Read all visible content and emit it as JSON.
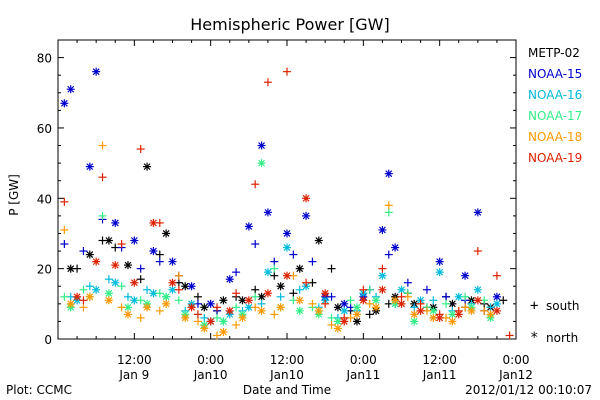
{
  "chart_data": {
    "type": "scatter",
    "title": "Hemispheric Power [GW]",
    "ylabel": "P [GW]",
    "xlabel": "Date and Time",
    "ylim": [
      0,
      85
    ],
    "xlim_hours": [
      0,
      72
    ],
    "yticks": [
      "0",
      "20",
      "40",
      "60",
      "80"
    ],
    "xticks": [
      {
        "hour": 12,
        "time": "12:00",
        "date": "Jan 9"
      },
      {
        "hour": 24,
        "time": "0:00",
        "date": "Jan10"
      },
      {
        "hour": 36,
        "time": "12:00",
        "date": "Jan10"
      },
      {
        "hour": 48,
        "time": "0:00",
        "date": "Jan11"
      },
      {
        "hour": 60,
        "time": "12:00",
        "date": "Jan11"
      },
      {
        "hour": 72,
        "time": "0:00",
        "date": "Jan12"
      }
    ],
    "footer_left": "Plot: CCMC",
    "footer_right": "2012/01/12 00:10:07",
    "marker_legend": {
      "south": "south",
      "north": "north",
      "south_symbol": "+",
      "north_symbol": "*"
    },
    "series": [
      {
        "name": "METP-02",
        "color": "#000000",
        "south": [
          [
            3,
            20
          ],
          [
            7,
            28
          ],
          [
            9,
            26
          ],
          [
            13,
            17
          ],
          [
            16,
            24
          ],
          [
            19,
            16
          ],
          [
            22,
            12
          ],
          [
            25,
            8
          ],
          [
            28,
            12
          ],
          [
            31,
            14
          ],
          [
            34,
            18
          ],
          [
            37,
            13
          ],
          [
            40,
            16
          ],
          [
            43,
            20
          ],
          [
            46,
            8
          ],
          [
            49,
            7
          ],
          [
            52,
            10
          ],
          [
            55,
            13
          ],
          [
            58,
            9
          ],
          [
            61,
            12
          ],
          [
            64,
            9
          ],
          [
            67,
            10
          ],
          [
            70,
            11
          ]
        ],
        "north": [
          [
            2,
            20
          ],
          [
            5,
            24
          ],
          [
            8,
            28
          ],
          [
            11,
            21
          ],
          [
            14,
            49
          ],
          [
            17,
            30
          ],
          [
            20,
            15
          ],
          [
            23,
            9
          ],
          [
            26,
            11
          ],
          [
            29,
            11
          ],
          [
            32,
            12
          ],
          [
            35,
            15
          ],
          [
            38,
            20
          ],
          [
            41,
            28
          ],
          [
            44,
            9
          ],
          [
            47,
            5
          ],
          [
            50,
            8
          ],
          [
            53,
            12
          ],
          [
            56,
            10
          ],
          [
            59,
            9
          ],
          [
            62,
            10
          ],
          [
            65,
            11
          ],
          [
            68,
            9
          ]
        ]
      },
      {
        "name": "NOAA-15",
        "color": "#0000cc",
        "south": [
          [
            1,
            27
          ],
          [
            4,
            25
          ],
          [
            7,
            34
          ],
          [
            10,
            26
          ],
          [
            13,
            20
          ],
          [
            16,
            22
          ],
          [
            19,
            18
          ],
          [
            22,
            10
          ],
          [
            25,
            8
          ],
          [
            28,
            19
          ],
          [
            31,
            27
          ],
          [
            34,
            22
          ],
          [
            37,
            24
          ],
          [
            40,
            22
          ],
          [
            43,
            12
          ],
          [
            46,
            9
          ],
          [
            49,
            14
          ],
          [
            52,
            24
          ],
          [
            55,
            16
          ],
          [
            58,
            14
          ],
          [
            61,
            12
          ],
          [
            64,
            11
          ],
          [
            67,
            8
          ]
        ],
        "north": [
          [
            1,
            67
          ],
          [
            2,
            71
          ],
          [
            5,
            49
          ],
          [
            6,
            76
          ],
          [
            9,
            33
          ],
          [
            12,
            28
          ],
          [
            15,
            25
          ],
          [
            18,
            22
          ],
          [
            21,
            15
          ],
          [
            24,
            10
          ],
          [
            27,
            17
          ],
          [
            30,
            32
          ],
          [
            32,
            55
          ],
          [
            33,
            36
          ],
          [
            36,
            30
          ],
          [
            39,
            35
          ],
          [
            42,
            12
          ],
          [
            45,
            10
          ],
          [
            48,
            12
          ],
          [
            51,
            31
          ],
          [
            52,
            47
          ],
          [
            53,
            26
          ],
          [
            60,
            22
          ],
          [
            64,
            18
          ],
          [
            66,
            36
          ],
          [
            69,
            12
          ]
        ]
      },
      {
        "name": "NOAA-16",
        "color": "#00bbdd",
        "south": [
          [
            2,
            12
          ],
          [
            5,
            15
          ],
          [
            8,
            17
          ],
          [
            11,
            12
          ],
          [
            14,
            14
          ],
          [
            17,
            12
          ],
          [
            20,
            8
          ],
          [
            23,
            6
          ],
          [
            26,
            5
          ],
          [
            29,
            8
          ],
          [
            32,
            10
          ],
          [
            35,
            12
          ],
          [
            38,
            14
          ],
          [
            41,
            9
          ],
          [
            44,
            6
          ],
          [
            47,
            8
          ],
          [
            50,
            12
          ],
          [
            53,
            10
          ],
          [
            56,
            9
          ],
          [
            59,
            11
          ],
          [
            62,
            8
          ],
          [
            65,
            10
          ],
          [
            68,
            9
          ]
        ],
        "north": [
          [
            3,
            11
          ],
          [
            6,
            14
          ],
          [
            9,
            16
          ],
          [
            12,
            11
          ],
          [
            15,
            13
          ],
          [
            18,
            14
          ],
          [
            21,
            10
          ],
          [
            24,
            5
          ],
          [
            27,
            7
          ],
          [
            30,
            9
          ],
          [
            33,
            19
          ],
          [
            36,
            26
          ],
          [
            39,
            15
          ],
          [
            42,
            11
          ],
          [
            45,
            8
          ],
          [
            48,
            13
          ],
          [
            51,
            18
          ],
          [
            54,
            14
          ],
          [
            57,
            11
          ],
          [
            60,
            19
          ],
          [
            63,
            12
          ],
          [
            66,
            14
          ],
          [
            69,
            10
          ]
        ]
      },
      {
        "name": "NOAA-17",
        "color": "#33ee88",
        "south": [
          [
            1,
            12
          ],
          [
            4,
            14
          ],
          [
            7,
            35
          ],
          [
            10,
            15
          ],
          [
            13,
            11
          ],
          [
            16,
            13
          ],
          [
            19,
            11
          ],
          [
            22,
            7
          ],
          [
            25,
            6
          ],
          [
            28,
            9
          ],
          [
            31,
            12
          ],
          [
            34,
            20
          ],
          [
            37,
            11
          ],
          [
            40,
            9
          ],
          [
            43,
            6
          ],
          [
            46,
            11
          ],
          [
            49,
            14
          ],
          [
            52,
            36
          ],
          [
            55,
            13
          ],
          [
            58,
            9
          ],
          [
            61,
            10
          ],
          [
            64,
            12
          ],
          [
            67,
            11
          ]
        ],
        "north": [
          [
            2,
            9
          ],
          [
            5,
            12
          ],
          [
            8,
            13
          ],
          [
            11,
            9
          ],
          [
            14,
            10
          ],
          [
            17,
            12
          ],
          [
            20,
            7
          ],
          [
            23,
            4
          ],
          [
            26,
            5
          ],
          [
            29,
            7
          ],
          [
            32,
            50
          ],
          [
            35,
            9
          ],
          [
            38,
            8
          ],
          [
            41,
            7
          ],
          [
            44,
            5
          ],
          [
            47,
            9
          ],
          [
            50,
            11
          ],
          [
            53,
            10
          ],
          [
            56,
            5
          ],
          [
            59,
            8
          ],
          [
            62,
            7
          ],
          [
            65,
            9
          ],
          [
            68,
            6
          ]
        ]
      },
      {
        "name": "NOAA-18",
        "color": "#ff9900",
        "south": [
          [
            1,
            31
          ],
          [
            4,
            9
          ],
          [
            7,
            55
          ],
          [
            10,
            9
          ],
          [
            13,
            6
          ],
          [
            16,
            8
          ],
          [
            19,
            18
          ],
          [
            22,
            5
          ],
          [
            25,
            1
          ],
          [
            28,
            4
          ],
          [
            31,
            9
          ],
          [
            34,
            7
          ],
          [
            37,
            18
          ],
          [
            40,
            10
          ],
          [
            43,
            4
          ],
          [
            46,
            6
          ],
          [
            49,
            10
          ],
          [
            52,
            38
          ],
          [
            55,
            12
          ],
          [
            58,
            8
          ],
          [
            61,
            6
          ],
          [
            64,
            9
          ],
          [
            67,
            8
          ]
        ],
        "north": [
          [
            2,
            10
          ],
          [
            5,
            12
          ],
          [
            8,
            11
          ],
          [
            11,
            7
          ],
          [
            14,
            9
          ],
          [
            17,
            10
          ],
          [
            20,
            6
          ],
          [
            23,
            3
          ],
          [
            26,
            2
          ],
          [
            29,
            6
          ],
          [
            32,
            8
          ],
          [
            35,
            9
          ],
          [
            38,
            11
          ],
          [
            41,
            8
          ],
          [
            44,
            3
          ],
          [
            47,
            7
          ],
          [
            50,
            9
          ],
          [
            53,
            11
          ],
          [
            56,
            7
          ],
          [
            59,
            6
          ],
          [
            62,
            5
          ],
          [
            65,
            8
          ],
          [
            68,
            7
          ]
        ]
      },
      {
        "name": "NOAA-19",
        "color": "#dd2200",
        "south": [
          [
            1,
            39
          ],
          [
            4,
            11
          ],
          [
            7,
            46
          ],
          [
            10,
            27
          ],
          [
            13,
            54
          ],
          [
            16,
            33
          ],
          [
            19,
            14
          ],
          [
            22,
            7
          ],
          [
            25,
            9
          ],
          [
            28,
            13
          ],
          [
            31,
            44
          ],
          [
            33,
            73
          ],
          [
            36,
            76
          ],
          [
            39,
            16
          ],
          [
            42,
            10
          ],
          [
            45,
            6
          ],
          [
            48,
            14
          ],
          [
            51,
            20
          ],
          [
            54,
            12
          ],
          [
            57,
            10
          ],
          [
            60,
            7
          ],
          [
            63,
            8
          ],
          [
            66,
            25
          ],
          [
            69,
            18
          ],
          [
            71,
            1
          ]
        ],
        "north": [
          [
            3,
            12
          ],
          [
            6,
            22
          ],
          [
            9,
            21
          ],
          [
            12,
            16
          ],
          [
            15,
            33
          ],
          [
            18,
            16
          ],
          [
            21,
            9
          ],
          [
            24,
            5
          ],
          [
            27,
            8
          ],
          [
            30,
            11
          ],
          [
            33,
            13
          ],
          [
            36,
            18
          ],
          [
            39,
            40
          ],
          [
            42,
            13
          ],
          [
            45,
            5
          ],
          [
            48,
            11
          ],
          [
            51,
            14
          ],
          [
            54,
            10
          ],
          [
            57,
            8
          ],
          [
            60,
            6
          ],
          [
            63,
            7
          ],
          [
            66,
            11
          ],
          [
            69,
            8
          ]
        ]
      }
    ]
  }
}
